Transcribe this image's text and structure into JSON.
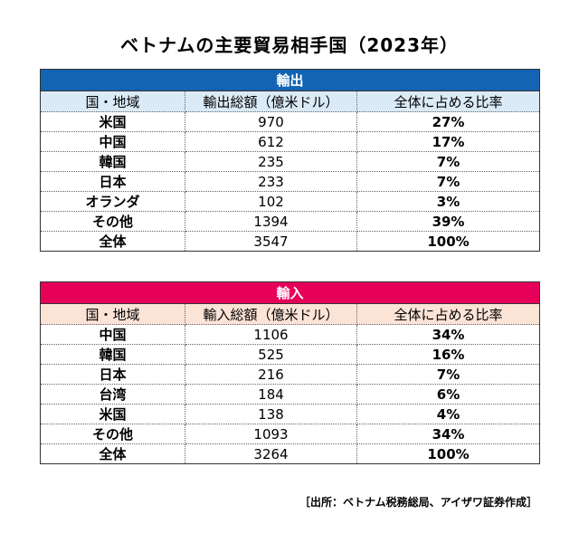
{
  "title": "ベトナムの主要貿易相手国（2023年）",
  "headers": {
    "region": "国・地域",
    "export_amount": "輸出総額（億米ドル）",
    "import_amount": "輸入総額（億米ドル）",
    "share": "全体に占める比率"
  },
  "export": {
    "label": "輸出",
    "rows": [
      {
        "country": "米国",
        "amount": "970",
        "share": "27%"
      },
      {
        "country": "中国",
        "amount": "612",
        "share": "17%"
      },
      {
        "country": "韓国",
        "amount": "235",
        "share": "7%"
      },
      {
        "country": "日本",
        "amount": "233",
        "share": "7%"
      },
      {
        "country": "オランダ",
        "amount": "102",
        "share": "3%"
      },
      {
        "country": "その他",
        "amount": "1394",
        "share": "39%"
      },
      {
        "country": "全体",
        "amount": "3547",
        "share": "100%"
      }
    ]
  },
  "import": {
    "label": "輸入",
    "rows": [
      {
        "country": "中国",
        "amount": "1106",
        "share": "34%"
      },
      {
        "country": "韓国",
        "amount": "525",
        "share": "16%"
      },
      {
        "country": "日本",
        "amount": "216",
        "share": "7%"
      },
      {
        "country": "台湾",
        "amount": "184",
        "share": "6%"
      },
      {
        "country": "米国",
        "amount": "138",
        "share": "4%"
      },
      {
        "country": "その他",
        "amount": "1093",
        "share": "34%"
      },
      {
        "country": "全体",
        "amount": "3264",
        "share": "100%"
      }
    ]
  },
  "source": "［出所：ベトナム税務総局、アイザワ証券作成］",
  "colors": {
    "export_header": "#1464b4",
    "import_header": "#e6005a",
    "export_subheader": "#dbeaf7",
    "import_subheader": "#fbe3d6"
  }
}
